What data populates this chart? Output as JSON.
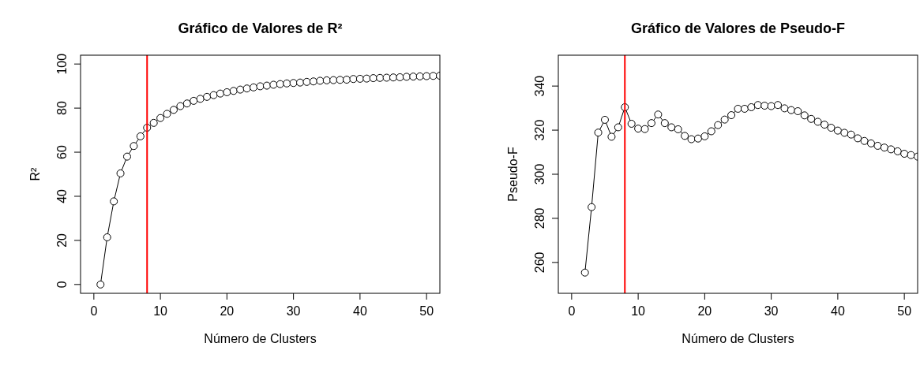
{
  "chart_data": [
    {
      "type": "line",
      "title": "Gráfico de Valores de R²",
      "xlabel": "Número de Clusters",
      "ylabel": "R²",
      "marker": "circle",
      "line_style": "solid",
      "grid": false,
      "x": [
        1,
        2,
        3,
        4,
        5,
        6,
        7,
        8,
        9,
        10,
        11,
        12,
        13,
        14,
        15,
        16,
        17,
        18,
        19,
        20,
        21,
        22,
        23,
        24,
        25,
        26,
        27,
        28,
        29,
        30,
        31,
        32,
        33,
        34,
        35,
        36,
        37,
        38,
        39,
        40,
        41,
        42,
        43,
        44,
        45,
        46,
        47,
        48,
        49,
        50,
        51,
        52
      ],
      "series": [
        {
          "color": "#000000",
          "values": [
            0,
            21.4,
            37.7,
            50.4,
            58.0,
            62.8,
            67.2,
            71.1,
            73.3,
            75.5,
            77.4,
            79.2,
            80.9,
            82.1,
            83.3,
            84.2,
            85.1,
            85.9,
            86.6,
            87.2,
            87.8,
            88.4,
            88.9,
            89.4,
            89.9,
            90.2,
            90.6,
            90.9,
            91.2,
            91.4,
            91.6,
            91.9,
            92.1,
            92.4,
            92.6,
            92.7,
            92.8,
            92.9,
            93.2,
            93.3,
            93.4,
            93.6,
            93.7,
            93.8,
            93.9,
            94.0,
            94.2,
            94.3,
            94.4,
            94.5,
            94.6,
            94.7
          ]
        }
      ],
      "xlim": [
        -2,
        52
      ],
      "xticks": [
        0,
        10,
        20,
        30,
        40,
        50
      ],
      "ylim": [
        -4,
        104
      ],
      "yticks": [
        0,
        20,
        40,
        60,
        80,
        100
      ],
      "ref_lines": [
        {
          "axis": "x",
          "value": 8,
          "color": "#ff0000"
        }
      ]
    },
    {
      "type": "line",
      "title": "Gráfico de Valores de Pseudo-F",
      "xlabel": "Número de Clusters",
      "ylabel": "Pseudo-F",
      "marker": "circle",
      "line_style": "solid",
      "grid": false,
      "x": [
        2,
        3,
        4,
        5,
        6,
        7,
        8,
        9,
        10,
        11,
        12,
        13,
        14,
        15,
        16,
        17,
        18,
        19,
        20,
        21,
        22,
        23,
        24,
        25,
        26,
        27,
        28,
        29,
        30,
        31,
        32,
        33,
        34,
        35,
        36,
        37,
        38,
        39,
        40,
        41,
        42,
        43,
        44,
        45,
        46,
        47,
        48,
        49,
        50,
        51,
        52
      ],
      "series": [
        {
          "color": "#000000",
          "values": [
            255.4,
            285.1,
            318.9,
            324.7,
            317.0,
            321.3,
            330.4,
            322.9,
            320.7,
            320.5,
            323.2,
            327.1,
            323.2,
            321.3,
            320.4,
            317.4,
            315.9,
            316.2,
            317.2,
            319.5,
            322.3,
            324.8,
            326.8,
            329.7,
            329.7,
            330.4,
            331.4,
            331.1,
            330.9,
            331.4,
            329.9,
            329.1,
            328.6,
            326.7,
            325.1,
            323.8,
            322.5,
            321.1,
            319.8,
            318.8,
            318.0,
            316.3,
            315.1,
            314.0,
            312.9,
            312.1,
            311.3,
            310.4,
            309.3,
            308.7,
            308.0
          ]
        }
      ],
      "xlim": [
        -2,
        52
      ],
      "xticks": [
        0,
        10,
        20,
        30,
        40,
        50
      ],
      "ylim": [
        246,
        354
      ],
      "yticks": [
        260,
        280,
        300,
        320,
        340
      ],
      "ref_lines": [
        {
          "axis": "x",
          "value": 8,
          "color": "#ff0000"
        }
      ]
    }
  ]
}
